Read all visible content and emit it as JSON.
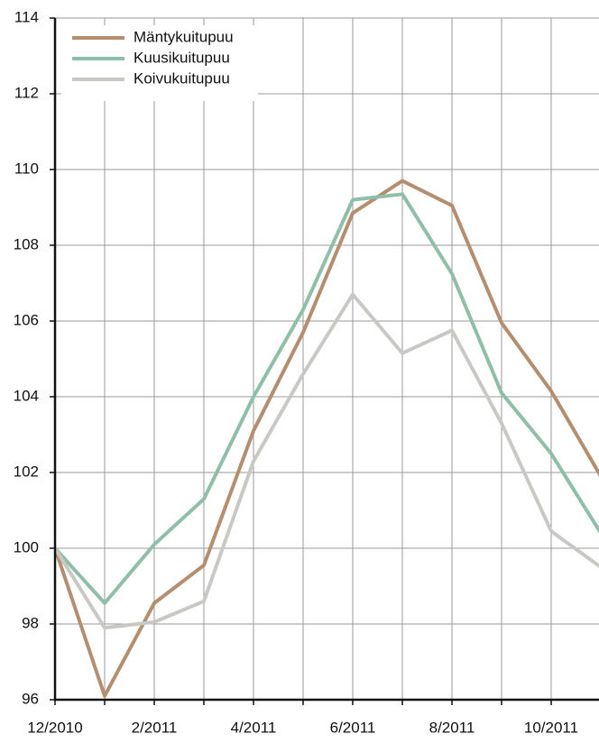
{
  "chart_data": {
    "type": "line",
    "categories": [
      "12/2010",
      null,
      "2/2011",
      null,
      "4/2011",
      null,
      "6/2011",
      null,
      "8/2011",
      null,
      "10/2011",
      null
    ],
    "series": [
      {
        "name": "Mäntykuitupuu",
        "color": "#b48e6e",
        "values": [
          100,
          96.1,
          98.55,
          99.55,
          103.1,
          105.7,
          108.85,
          109.7,
          109.05,
          105.95,
          104.15,
          101.9
        ]
      },
      {
        "name": "Kuusikuitupuu",
        "color": "#8fbfa8",
        "values": [
          100,
          98.55,
          100.1,
          101.3,
          104.0,
          106.3,
          109.2,
          109.35,
          107.25,
          104.1,
          102.5,
          100.4
        ]
      },
      {
        "name": "Koivukuitupuu",
        "color": "#c8c8c4",
        "values": [
          100,
          97.9,
          98.05,
          98.6,
          102.3,
          104.6,
          106.7,
          105.15,
          105.75,
          103.3,
          100.45,
          99.5
        ]
      }
    ],
    "ylim": [
      96,
      114
    ],
    "yticks": [
      96,
      98,
      100,
      102,
      104,
      106,
      108,
      110,
      112,
      114
    ],
    "grid": true,
    "legend": "top-left"
  }
}
